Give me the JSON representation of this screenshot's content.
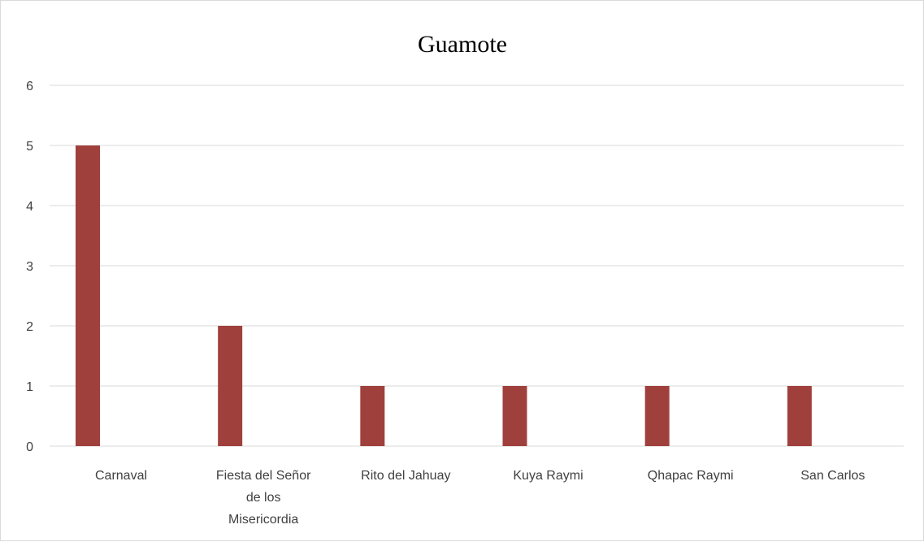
{
  "chart_data": {
    "type": "bar",
    "title": "Guamote",
    "xlabel": "",
    "ylabel": "",
    "categories": [
      "Carnaval",
      "Fiesta del Señor de los Misericordia",
      "Rito del Jahuay",
      "Kuya Raymi",
      "Qhapac Raymi",
      "San Carlos"
    ],
    "category_label_lines": [
      [
        "Carnaval"
      ],
      [
        "Fiesta del Señor",
        "de los",
        "Misericordia"
      ],
      [
        "Rito del Jahuay"
      ],
      [
        "Kuya Raymi"
      ],
      [
        "Qhapac Raymi"
      ],
      [
        "San Carlos"
      ]
    ],
    "values": [
      5,
      2,
      1,
      1,
      1,
      1
    ],
    "ylim": [
      0,
      6
    ],
    "yticks": [
      0,
      1,
      2,
      3,
      4,
      5,
      6
    ],
    "grid": true,
    "legend": "none",
    "bar_color": "#a0403c",
    "grid_color": "#d9d9d9"
  }
}
